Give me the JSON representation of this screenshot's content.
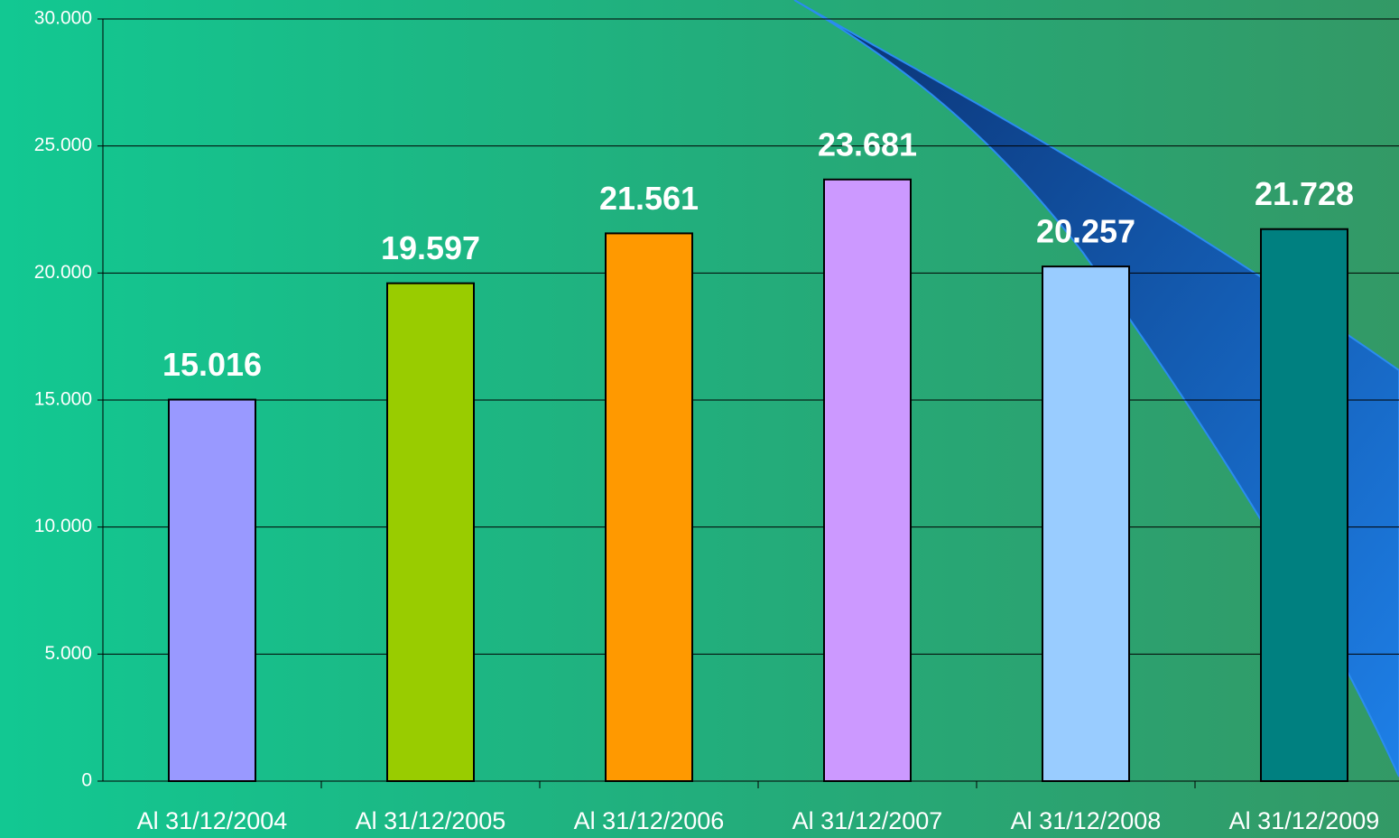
{
  "chart_data": {
    "type": "bar",
    "categories": [
      "Al 31/12/2004",
      "Al 31/12/2005",
      "Al 31/12/2006",
      "Al 31/12/2007",
      "Al 31/12/2008",
      "Al 31/12/2009"
    ],
    "values": [
      15016,
      19597,
      21561,
      23681,
      20257,
      21728
    ],
    "value_labels": [
      "15.016",
      "19.597",
      "21.561",
      "23.681",
      "20.257",
      "21.728"
    ],
    "colors": [
      "#9999ff",
      "#99cc00",
      "#ff9900",
      "#cc99ff",
      "#99ccff",
      "#008080"
    ],
    "ylim": [
      0,
      30000
    ],
    "yticks": [
      0,
      {
        "value": 5000,
        "label": "5.000"
      },
      {
        "value": 10000,
        "label": "10.000"
      },
      {
        "value": 15000,
        "label": "15.000"
      },
      {
        "value": 20000,
        "label": "20.000"
      },
      {
        "value": 25000,
        "label": "25.000"
      },
      {
        "value": 30000,
        "label": "30.000"
      }
    ],
    "grid": true
  }
}
